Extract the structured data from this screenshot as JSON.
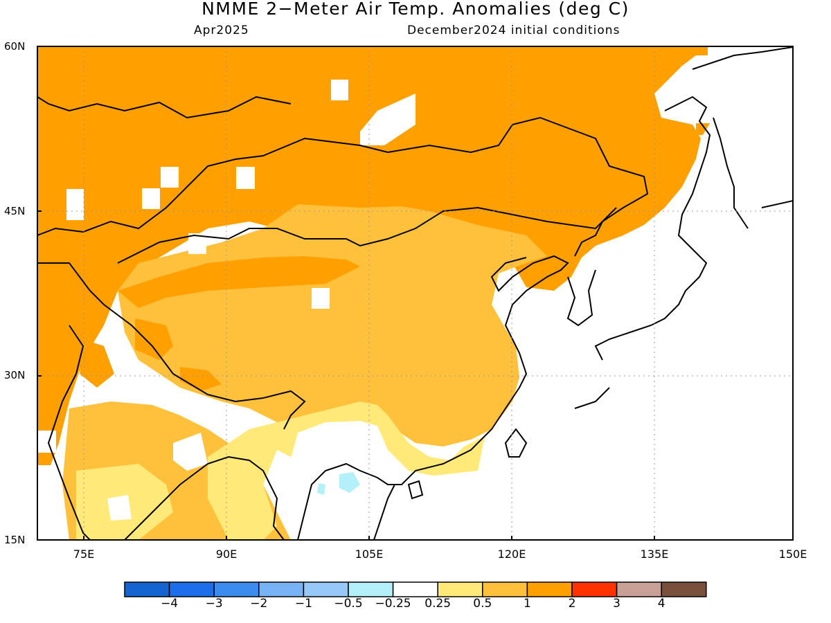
{
  "header": {
    "title": "NMME 2−Meter Air Temp. Anomalies (deg C)",
    "target_month": "Apr2025",
    "init_conditions": "December2024 initial conditions"
  },
  "axes": {
    "lat_labels": [
      "60N",
      "45N",
      "30N",
      "15N"
    ],
    "lon_labels": [
      "75E",
      "90E",
      "105E",
      "120E",
      "135E",
      "150E"
    ],
    "lat_range": [
      15,
      60
    ],
    "lon_range": [
      70,
      150
    ]
  },
  "colorbar": {
    "colors": [
      "#1464d2",
      "#1e6eeb",
      "#3c8cf0",
      "#78b4f5",
      "#96c8fa",
      "#b4f0fa",
      "#ffffff",
      "#ffe978",
      "#ffc03c",
      "#ffa000",
      "#ff3200",
      "#c8a096",
      "#78503c"
    ],
    "labels": [
      "−4",
      "−3",
      "−2",
      "−1",
      "−0.5",
      "−0.25",
      "0.25",
      "0.5",
      "1",
      "2",
      "3",
      "4"
    ]
  },
  "colors": {
    "anomaly_1_to_2": "#ffa000",
    "anomaly_0_5_to_1": "#ffc03c",
    "anomaly_0_25_to_0_5": "#ffe978",
    "anomaly_neg_0_5_to_neg_0_25": "#b4f0fa",
    "coastline": "#000000"
  }
}
